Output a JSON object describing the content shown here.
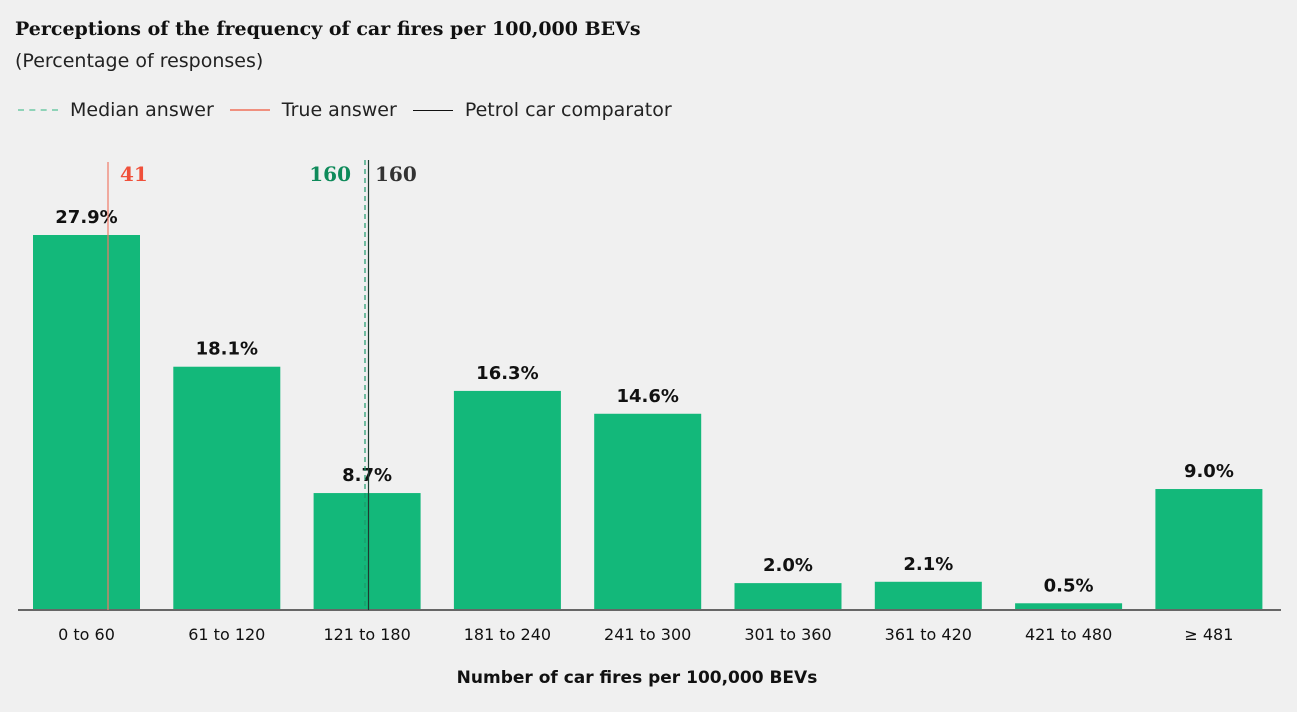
{
  "chart_data": {
    "type": "bar",
    "title": "Perceptions of the frequency of car fires per 100,000 BEVs",
    "subtitle": "(Percentage of responses)",
    "xlabel": "Number of car fires per 100,000 BEVs",
    "ylabel": "",
    "categories": [
      "0 to 60",
      "61 to 120",
      "121 to 180",
      "181 to 240",
      "241 to 300",
      "301 to 360",
      "361 to 420",
      "421 to 480",
      "≥ 481"
    ],
    "values": [
      27.9,
      18.1,
      8.7,
      16.3,
      14.6,
      2.0,
      2.1,
      0.5,
      9.0
    ],
    "data_labels": [
      "27.9%",
      "18.1%",
      "8.7%",
      "16.3%",
      "14.6%",
      "2.0%",
      "2.1%",
      "0.5%",
      "9.0%"
    ],
    "ylim": [
      0,
      30
    ],
    "grid": false,
    "legend_position": "top-left",
    "legend": [
      {
        "label": "Median answer",
        "style": "dashed",
        "color": "#5bbf9a"
      },
      {
        "label": "True answer",
        "style": "solid",
        "color": "#f07a68"
      },
      {
        "label": "Petrol car comparator",
        "style": "solid",
        "color": "#111111"
      }
    ],
    "reference_lines": [
      {
        "name": "True answer",
        "value": 41,
        "label": "41",
        "color": "#f0503a"
      },
      {
        "name": "Median answer",
        "value": 160,
        "label": "160",
        "color": "#0e8a5a"
      },
      {
        "name": "Petrol car comparator",
        "value": 160,
        "label": "160",
        "color": "#333333"
      }
    ],
    "bar_color": "#13b87a"
  }
}
